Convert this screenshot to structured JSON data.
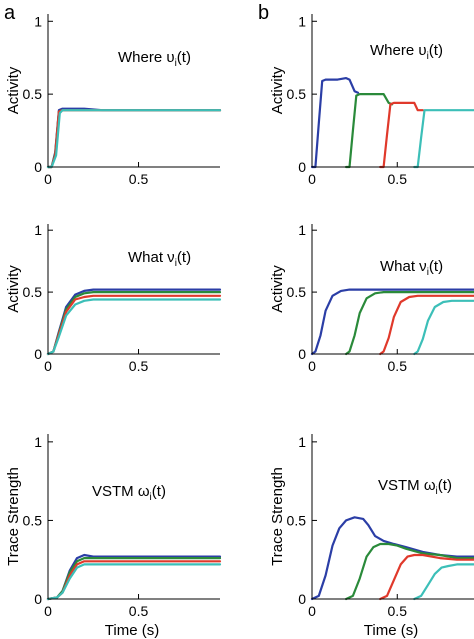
{
  "figure": {
    "panel_letters": [
      "a",
      "b"
    ],
    "colors": {
      "blue": "#2b3ea6",
      "green": "#2a8a3a",
      "red": "#e0392b",
      "cyan": "#3cbfb8",
      "axis": "#000000"
    }
  },
  "chart_data": [
    {
      "type": "line",
      "panel": "a",
      "annotation": "Where υ",
      "annotation_sub": "i",
      "annotation_tail": "(t)",
      "xlabel": "",
      "ylabel": "Activity",
      "xlim": [
        0,
        0.95
      ],
      "ylim": [
        0,
        1.05
      ],
      "xticks": [
        0,
        0.5
      ],
      "xtick_labels": [
        "0",
        "0.5"
      ],
      "yticks": [
        0,
        0.5,
        1
      ],
      "ytick_labels": [
        "0",
        "0.5",
        "1"
      ],
      "series": [
        {
          "color": "blue",
          "x": [
            0,
            0.02,
            0.04,
            0.06,
            0.08,
            0.1,
            0.2,
            0.3,
            0.5,
            0.95
          ],
          "y": [
            0,
            0,
            0.1,
            0.39,
            0.4,
            0.4,
            0.4,
            0.39,
            0.39,
            0.39
          ]
        },
        {
          "color": "green",
          "x": [
            0,
            0.02,
            0.04,
            0.06,
            0.08,
            0.1,
            0.2,
            0.3,
            0.5,
            0.95
          ],
          "y": [
            0,
            0,
            0.09,
            0.38,
            0.39,
            0.39,
            0.39,
            0.39,
            0.39,
            0.39
          ]
        },
        {
          "color": "red",
          "x": [
            0,
            0.02,
            0.04,
            0.06,
            0.08,
            0.1,
            0.2,
            0.3,
            0.5,
            0.95
          ],
          "y": [
            0,
            0,
            0.08,
            0.38,
            0.39,
            0.39,
            0.39,
            0.39,
            0.39,
            0.39
          ]
        },
        {
          "color": "cyan",
          "x": [
            0,
            0.02,
            0.045,
            0.065,
            0.08,
            0.1,
            0.2,
            0.3,
            0.5,
            0.95
          ],
          "y": [
            0,
            0,
            0.08,
            0.37,
            0.39,
            0.39,
            0.39,
            0.39,
            0.39,
            0.39
          ]
        }
      ]
    },
    {
      "type": "line",
      "panel": "b",
      "annotation": "Where υ",
      "annotation_sub": "i",
      "annotation_tail": "(t)",
      "xlabel": "",
      "ylabel": "Activity",
      "xlim": [
        0,
        0.95
      ],
      "ylim": [
        0,
        1.05
      ],
      "xticks": [
        0,
        0.5
      ],
      "xtick_labels": [
        "0",
        "0.5"
      ],
      "yticks": [
        0,
        0.5,
        1
      ],
      "ytick_labels": [
        "0",
        "0.5",
        "1"
      ],
      "series": [
        {
          "color": "blue",
          "x": [
            0,
            0.02,
            0.04,
            0.06,
            0.08,
            0.15,
            0.2,
            0.22,
            0.25,
            0.27
          ],
          "y": [
            0,
            0,
            0.3,
            0.59,
            0.6,
            0.6,
            0.61,
            0.6,
            0.52,
            0.51
          ]
        },
        {
          "color": "green",
          "x": [
            0.2,
            0.22,
            0.24,
            0.26,
            0.28,
            0.4,
            0.42,
            0.45,
            0.47
          ],
          "y": [
            0,
            0,
            0.25,
            0.49,
            0.5,
            0.5,
            0.5,
            0.44,
            0.43
          ]
        },
        {
          "color": "red",
          "x": [
            0.4,
            0.42,
            0.44,
            0.46,
            0.48,
            0.58,
            0.6,
            0.62,
            0.65
          ],
          "y": [
            0,
            0,
            0.22,
            0.43,
            0.44,
            0.44,
            0.44,
            0.39,
            0.39
          ]
        },
        {
          "color": "cyan",
          "x": [
            0.6,
            0.62,
            0.64,
            0.66,
            0.68,
            0.8,
            0.95
          ],
          "y": [
            0,
            0,
            0.2,
            0.39,
            0.39,
            0.39,
            0.39
          ]
        }
      ]
    },
    {
      "type": "line",
      "panel": "a",
      "annotation": "What ν",
      "annotation_sub": "i",
      "annotation_tail": "(t)",
      "xlabel": "",
      "ylabel": "Activity",
      "xlim": [
        0,
        0.95
      ],
      "ylim": [
        0,
        1.05
      ],
      "xticks": [
        0,
        0.5
      ],
      "xtick_labels": [
        "0",
        "0.5"
      ],
      "yticks": [
        0,
        0.5,
        1
      ],
      "ytick_labels": [
        "0",
        "0.5",
        "1"
      ],
      "series": [
        {
          "color": "blue",
          "x": [
            0,
            0.03,
            0.06,
            0.1,
            0.15,
            0.2,
            0.25,
            0.3,
            0.5,
            0.95
          ],
          "y": [
            0,
            0.02,
            0.18,
            0.38,
            0.48,
            0.51,
            0.52,
            0.52,
            0.52,
            0.52
          ]
        },
        {
          "color": "green",
          "x": [
            0,
            0.03,
            0.06,
            0.1,
            0.15,
            0.2,
            0.25,
            0.3,
            0.5,
            0.95
          ],
          "y": [
            0,
            0.02,
            0.17,
            0.36,
            0.46,
            0.49,
            0.5,
            0.5,
            0.5,
            0.5
          ]
        },
        {
          "color": "red",
          "x": [
            0,
            0.03,
            0.06,
            0.1,
            0.15,
            0.2,
            0.25,
            0.3,
            0.5,
            0.95
          ],
          "y": [
            0,
            0.02,
            0.16,
            0.34,
            0.44,
            0.46,
            0.47,
            0.47,
            0.47,
            0.47
          ]
        },
        {
          "color": "cyan",
          "x": [
            0,
            0.03,
            0.06,
            0.1,
            0.15,
            0.2,
            0.25,
            0.3,
            0.5,
            0.95
          ],
          "y": [
            0,
            0.02,
            0.14,
            0.31,
            0.4,
            0.43,
            0.44,
            0.44,
            0.44,
            0.44
          ]
        }
      ]
    },
    {
      "type": "line",
      "panel": "b",
      "annotation": "What ν",
      "annotation_sub": "i",
      "annotation_tail": "(t)",
      "xlabel": "",
      "ylabel": "Activity",
      "xlim": [
        0,
        0.95
      ],
      "ylim": [
        0,
        1.05
      ],
      "xticks": [
        0,
        0.5
      ],
      "xtick_labels": [
        "0",
        "0.5"
      ],
      "yticks": [
        0,
        0.5,
        1
      ],
      "ytick_labels": [
        "0",
        "0.5",
        "1"
      ],
      "series": [
        {
          "color": "blue",
          "x": [
            0,
            0.02,
            0.05,
            0.08,
            0.12,
            0.17,
            0.22,
            0.3,
            0.95
          ],
          "y": [
            0,
            0.02,
            0.15,
            0.35,
            0.47,
            0.51,
            0.52,
            0.52,
            0.52
          ]
        },
        {
          "color": "green",
          "x": [
            0.2,
            0.22,
            0.25,
            0.28,
            0.32,
            0.37,
            0.42,
            0.5,
            0.95
          ],
          "y": [
            0,
            0.02,
            0.15,
            0.33,
            0.45,
            0.49,
            0.5,
            0.5,
            0.5
          ]
        },
        {
          "color": "red",
          "x": [
            0.4,
            0.42,
            0.45,
            0.48,
            0.52,
            0.57,
            0.62,
            0.7,
            0.95
          ],
          "y": [
            0,
            0.02,
            0.13,
            0.3,
            0.42,
            0.46,
            0.47,
            0.47,
            0.47
          ]
        },
        {
          "color": "cyan",
          "x": [
            0.6,
            0.62,
            0.65,
            0.68,
            0.72,
            0.77,
            0.82,
            0.95
          ],
          "y": [
            0,
            0.02,
            0.12,
            0.27,
            0.38,
            0.42,
            0.43,
            0.43
          ]
        }
      ]
    },
    {
      "type": "line",
      "panel": "a",
      "annotation": "VSTM ω",
      "annotation_sub": "i",
      "annotation_tail": "(t)",
      "xlabel": "Time (s)",
      "ylabel": "Trace Strength",
      "xlim": [
        0,
        0.95
      ],
      "ylim": [
        0,
        1.05
      ],
      "xticks": [
        0,
        0.5
      ],
      "xtick_labels": [
        "0",
        "0.5"
      ],
      "yticks": [
        0,
        0.5,
        1
      ],
      "ytick_labels": [
        "0",
        "0.5",
        "1"
      ],
      "series": [
        {
          "color": "blue",
          "x": [
            0,
            0.05,
            0.08,
            0.12,
            0.16,
            0.2,
            0.25,
            0.3,
            0.5,
            0.95
          ],
          "y": [
            0,
            0.01,
            0.05,
            0.18,
            0.26,
            0.28,
            0.27,
            0.27,
            0.27,
            0.27
          ]
        },
        {
          "color": "green",
          "x": [
            0,
            0.05,
            0.08,
            0.12,
            0.16,
            0.2,
            0.25,
            0.3,
            0.5,
            0.95
          ],
          "y": [
            0,
            0.01,
            0.05,
            0.17,
            0.24,
            0.26,
            0.26,
            0.26,
            0.26,
            0.26
          ]
        },
        {
          "color": "red",
          "x": [
            0,
            0.05,
            0.08,
            0.12,
            0.16,
            0.2,
            0.25,
            0.3,
            0.5,
            0.95
          ],
          "y": [
            0,
            0.01,
            0.04,
            0.15,
            0.22,
            0.24,
            0.24,
            0.24,
            0.24,
            0.24
          ]
        },
        {
          "color": "cyan",
          "x": [
            0,
            0.05,
            0.08,
            0.12,
            0.16,
            0.2,
            0.25,
            0.3,
            0.5,
            0.95
          ],
          "y": [
            0,
            0.01,
            0.04,
            0.13,
            0.2,
            0.22,
            0.22,
            0.22,
            0.22,
            0.22
          ]
        }
      ]
    },
    {
      "type": "line",
      "panel": "b",
      "annotation": "VSTM ω",
      "annotation_sub": "i",
      "annotation_tail": "(t)",
      "xlabel": "Time (s)",
      "ylabel": "Trace Strength",
      "xlim": [
        0,
        0.95
      ],
      "ylim": [
        0,
        1.05
      ],
      "xticks": [
        0,
        0.5
      ],
      "xtick_labels": [
        "0",
        "0.5"
      ],
      "yticks": [
        0,
        0.5,
        1
      ],
      "ytick_labels": [
        "0",
        "0.5",
        "1"
      ],
      "series": [
        {
          "color": "blue",
          "x": [
            0,
            0.04,
            0.08,
            0.12,
            0.16,
            0.2,
            0.25,
            0.3,
            0.33,
            0.37,
            0.42,
            0.48,
            0.55,
            0.65,
            0.75,
            0.85,
            0.95
          ],
          "y": [
            0,
            0.02,
            0.15,
            0.34,
            0.45,
            0.5,
            0.52,
            0.51,
            0.47,
            0.4,
            0.37,
            0.35,
            0.33,
            0.3,
            0.28,
            0.27,
            0.27
          ]
        },
        {
          "color": "green",
          "x": [
            0.2,
            0.24,
            0.28,
            0.32,
            0.36,
            0.4,
            0.45,
            0.5,
            0.55,
            0.65,
            0.75,
            0.85,
            0.95
          ],
          "y": [
            0,
            0.02,
            0.13,
            0.27,
            0.33,
            0.35,
            0.35,
            0.34,
            0.32,
            0.29,
            0.28,
            0.26,
            0.26
          ]
        },
        {
          "color": "red",
          "x": [
            0.4,
            0.44,
            0.48,
            0.52,
            0.56,
            0.6,
            0.65,
            0.75,
            0.85,
            0.95
          ],
          "y": [
            0,
            0.02,
            0.12,
            0.22,
            0.27,
            0.28,
            0.28,
            0.26,
            0.25,
            0.25
          ]
        },
        {
          "color": "cyan",
          "x": [
            0.6,
            0.64,
            0.68,
            0.72,
            0.76,
            0.8,
            0.85,
            0.95
          ],
          "y": [
            0,
            0.02,
            0.09,
            0.16,
            0.2,
            0.21,
            0.22,
            0.22
          ]
        }
      ]
    }
  ]
}
